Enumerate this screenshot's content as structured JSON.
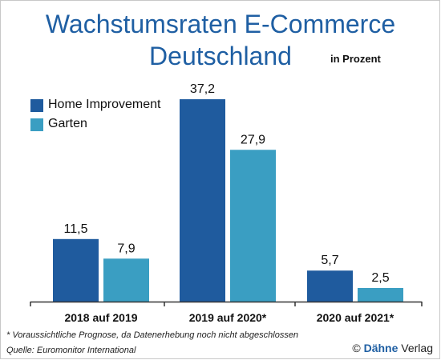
{
  "header": {
    "title_line1": "Wachstumsraten E-Commerce",
    "title_line2": "Deutschland",
    "unit": "in Prozent"
  },
  "legend": [
    {
      "label": "Home Improvement",
      "color": "#1f5b9e"
    },
    {
      "label": "Garten",
      "color": "#3a9ec2"
    }
  ],
  "chart_data": {
    "type": "bar",
    "categories": [
      "2018 auf 2019",
      "2019 auf 2020*",
      "2020 auf 2021*"
    ],
    "series": [
      {
        "name": "Home Improvement",
        "values": [
          11.5,
          37.2,
          5.7
        ],
        "labels": [
          "11,5",
          "37,2",
          "5,7"
        ],
        "color": "#1f5b9e"
      },
      {
        "name": "Garten",
        "values": [
          7.9,
          27.9,
          2.5
        ],
        "labels": [
          "7,9",
          "27,9",
          "2,5"
        ],
        "color": "#3a9ec2"
      }
    ],
    "ylabel": "",
    "xlabel": "",
    "ylim": [
      0,
      40
    ],
    "grid": false,
    "legend_position": "top-left"
  },
  "footer": {
    "footnote": "* Voraussichtliche Prognose, da Datenerhebung noch nicht abgeschlossen",
    "source": "Quelle: Euromonitor International",
    "credit_symbol": "©",
    "credit_brand": "Dähne",
    "credit_suffix": "Verlag"
  }
}
